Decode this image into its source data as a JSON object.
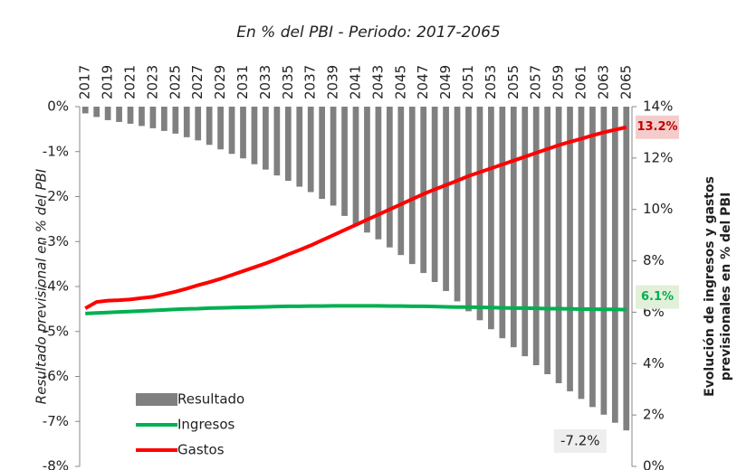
{
  "chart_data": {
    "type": "bar-line",
    "subtitle": "En % del PBI - Periodo: 2017-2065",
    "ylabel": "Resultado previsional en % del PBI",
    "y2label": [
      "Evolución de ingresos y gastos",
      "previsionales en % del PBI"
    ],
    "categories": [
      "2017",
      null,
      "2019",
      null,
      "2021",
      null,
      "2023",
      null,
      "2025",
      null,
      "2027",
      null,
      "2029",
      null,
      "2031",
      null,
      "2033",
      null,
      "2035",
      null,
      "2037",
      null,
      "2039",
      null,
      "2041",
      null,
      "2043",
      null,
      "2045",
      null,
      "2047",
      null,
      "2049",
      null,
      "2051",
      null,
      "2053",
      null,
      "2055",
      null,
      "2057",
      null,
      "2059",
      null,
      "2061",
      null,
      "2063",
      null,
      "2065"
    ],
    "ylim": [
      -8,
      0
    ],
    "yticks": [
      {
        "value": 0,
        "label": "0%"
      },
      {
        "value": -1,
        "label": "-1%"
      },
      {
        "value": -2,
        "label": "-2%"
      },
      {
        "value": -3,
        "label": "-3%"
      },
      {
        "value": -4,
        "label": "-4%"
      },
      {
        "value": -5,
        "label": "-5%"
      },
      {
        "value": -6,
        "label": "-6%"
      },
      {
        "value": -7,
        "label": "-7%"
      },
      {
        "value": -8,
        "label": "-8%"
      }
    ],
    "y2lim": [
      0,
      14
    ],
    "y2ticks": [
      {
        "value": 0,
        "label": "0%"
      },
      {
        "value": 2,
        "label": "2%"
      },
      {
        "value": 4,
        "label": "4%"
      },
      {
        "value": 6,
        "label": "6%"
      },
      {
        "value": 8,
        "label": "8%"
      },
      {
        "value": 10,
        "label": "10%"
      },
      {
        "value": 12,
        "label": "12%"
      },
      {
        "value": 14,
        "label": "14%"
      }
    ],
    "legend": "lower left",
    "series": [
      {
        "name": "Resultado",
        "kind": "bar",
        "color": "#808080",
        "values": [
          -0.15,
          -0.23,
          -0.3,
          -0.34,
          -0.38,
          -0.43,
          -0.48,
          -0.54,
          -0.6,
          -0.68,
          -0.75,
          -0.85,
          -0.95,
          -1.05,
          -1.15,
          -1.28,
          -1.4,
          -1.53,
          -1.65,
          -1.78,
          -1.9,
          -2.05,
          -2.2,
          -2.43,
          -2.65,
          -2.8,
          -2.95,
          -3.13,
          -3.3,
          -3.5,
          -3.7,
          -3.9,
          -4.1,
          -4.33,
          -4.55,
          -4.75,
          -4.95,
          -5.15,
          -5.35,
          -5.55,
          -5.75,
          -5.95,
          -6.15,
          -6.33,
          -6.5,
          -6.68,
          -6.85,
          -7.03,
          -7.2
        ],
        "value_labels": [
          null,
          null,
          null,
          null,
          null,
          null,
          null,
          null,
          null,
          null,
          null,
          null,
          null,
          null,
          null,
          null,
          null,
          null,
          null,
          null,
          null,
          null,
          null,
          null,
          null,
          null,
          null,
          null,
          null,
          null,
          null,
          null,
          null,
          null,
          null,
          null,
          null,
          null,
          null,
          null,
          null,
          null,
          null,
          null,
          null,
          null,
          null,
          null,
          "-7.2%"
        ]
      },
      {
        "name": "Ingresos",
        "kind": "line",
        "axis": "y2",
        "color": "#00b050",
        "values": [
          5.95,
          5.97,
          5.99,
          6.01,
          6.03,
          6.05,
          6.07,
          6.09,
          6.11,
          6.13,
          6.14,
          6.16,
          6.17,
          6.18,
          6.19,
          6.2,
          6.21,
          6.22,
          6.23,
          6.23,
          6.24,
          6.24,
          6.25,
          6.25,
          6.25,
          6.25,
          6.25,
          6.24,
          6.24,
          6.23,
          6.23,
          6.22,
          6.21,
          6.2,
          6.2,
          6.19,
          6.18,
          6.17,
          6.16,
          6.16,
          6.15,
          6.14,
          6.14,
          6.13,
          6.12,
          6.12,
          6.11,
          6.11,
          6.1
        ],
        "value_labels": [
          null,
          null,
          null,
          null,
          null,
          null,
          null,
          null,
          null,
          null,
          null,
          null,
          null,
          null,
          null,
          null,
          null,
          null,
          null,
          null,
          null,
          null,
          null,
          null,
          null,
          null,
          null,
          null,
          null,
          null,
          null,
          null,
          null,
          null,
          null,
          null,
          null,
          null,
          null,
          null,
          null,
          null,
          null,
          null,
          null,
          null,
          null,
          null,
          "6.1%"
        ]
      },
      {
        "name": "Gastos",
        "kind": "line",
        "axis": "y2",
        "color": "#ff0000",
        "values": [
          6.15,
          6.4,
          6.45,
          6.47,
          6.5,
          6.55,
          6.6,
          6.7,
          6.8,
          6.92,
          7.05,
          7.17,
          7.3,
          7.45,
          7.6,
          7.75,
          7.9,
          8.07,
          8.25,
          8.42,
          8.6,
          8.8,
          9.0,
          9.2,
          9.4,
          9.6,
          9.8,
          10.0,
          10.2,
          10.4,
          10.6,
          10.78,
          10.95,
          11.12,
          11.3,
          11.45,
          11.6,
          11.75,
          11.9,
          12.05,
          12.2,
          12.35,
          12.5,
          12.63,
          12.75,
          12.88,
          13.0,
          13.1,
          13.2
        ],
        "value_labels": [
          null,
          null,
          null,
          null,
          null,
          null,
          null,
          null,
          null,
          null,
          null,
          null,
          null,
          null,
          null,
          null,
          null,
          null,
          null,
          null,
          null,
          null,
          null,
          null,
          null,
          null,
          null,
          null,
          null,
          null,
          null,
          null,
          null,
          null,
          null,
          null,
          null,
          null,
          null,
          null,
          null,
          null,
          null,
          null,
          null,
          null,
          null,
          null,
          "13.2%"
        ]
      }
    ]
  }
}
